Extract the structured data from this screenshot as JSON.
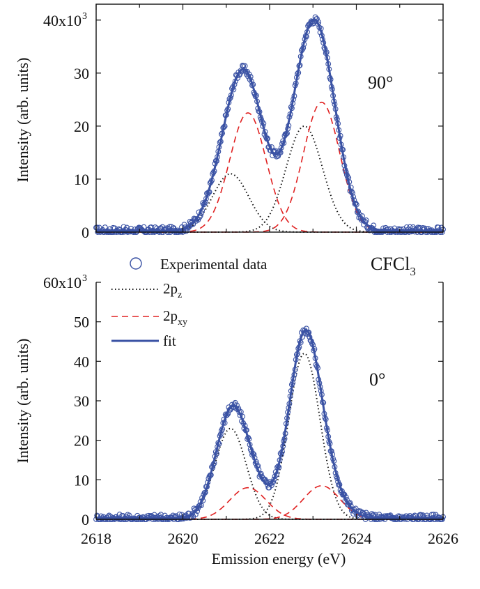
{
  "figure": {
    "molecule_label": "CFCl",
    "molecule_subscript": "3",
    "xlabel": "Emission energy (eV)"
  },
  "legend": {
    "experimental": "Experimental data",
    "pz_main": "2p",
    "pz_sub": "z",
    "pxy_main": "2p",
    "pxy_sub": "xy",
    "fit": "fit"
  },
  "colors": {
    "data": "#3a52a4",
    "fit": "#3a52a4",
    "pz": "#111111",
    "pxy": "#e02020"
  },
  "chart_data": [
    {
      "type": "line",
      "panel": "top",
      "annotation": "90°",
      "ylabel": "Intensity (arb. units)",
      "xlim": [
        2618,
        2626
      ],
      "ylim": [
        0,
        43000
      ],
      "yticks": [
        0,
        10000,
        20000,
        30000,
        40000
      ],
      "ytick_labels": [
        "0",
        "10",
        "20",
        "30",
        "40x10"
      ],
      "ytick_top_exponent": "3",
      "x_ticks": [
        2618,
        2620,
        2622,
        2624,
        2626
      ],
      "components": {
        "pz": [
          {
            "center": 2621.1,
            "amp": 11000,
            "width": 0.42
          },
          {
            "center": 2622.8,
            "amp": 20000,
            "width": 0.42
          }
        ],
        "pxy": [
          {
            "center": 2621.5,
            "amp": 22500,
            "width": 0.42
          },
          {
            "center": 2623.2,
            "amp": 24500,
            "width": 0.42
          }
        ]
      },
      "series": [
        {
          "name": "Experimental data",
          "kind": "points"
        },
        {
          "name": "2pz",
          "kind": "dotted"
        },
        {
          "name": "2pxy",
          "kind": "dashed"
        },
        {
          "name": "fit",
          "kind": "solid"
        }
      ]
    },
    {
      "type": "line",
      "panel": "bottom",
      "annotation": "0°",
      "ylabel": "Intensity (arb. units)",
      "xlim": [
        2618,
        2626
      ],
      "ylim": [
        0,
        60000
      ],
      "yticks": [
        0,
        10000,
        20000,
        30000,
        40000,
        50000,
        60000
      ],
      "ytick_labels": [
        "0",
        "10",
        "20",
        "30",
        "40",
        "50",
        "60x10"
      ],
      "ytick_top_exponent": "3",
      "x_ticks": [
        2618,
        2620,
        2622,
        2624,
        2626
      ],
      "xtick_labels": [
        "2618",
        "2620",
        "2622",
        "2624",
        "2626"
      ],
      "components": {
        "pz": [
          {
            "center": 2621.1,
            "amp": 23000,
            "width": 0.36
          },
          {
            "center": 2622.8,
            "amp": 42000,
            "width": 0.36
          }
        ],
        "pxy": [
          {
            "center": 2621.5,
            "amp": 8000,
            "width": 0.42
          },
          {
            "center": 2623.2,
            "amp": 8500,
            "width": 0.42
          }
        ]
      },
      "series": [
        {
          "name": "Experimental data",
          "kind": "points"
        },
        {
          "name": "2pz",
          "kind": "dotted"
        },
        {
          "name": "2pxy",
          "kind": "dashed"
        },
        {
          "name": "fit",
          "kind": "solid"
        }
      ]
    }
  ]
}
